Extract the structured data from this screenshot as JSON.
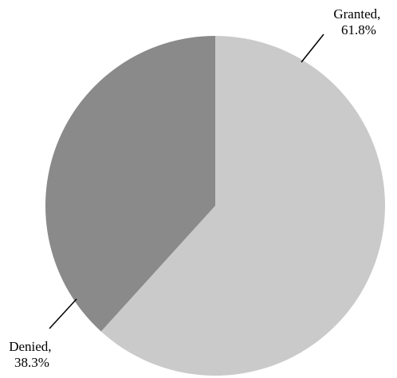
{
  "chart_data": {
    "type": "pie",
    "slices": [
      {
        "label": "Granted",
        "value": 61.8,
        "value_label": "61.8%",
        "color": "#cacaca"
      },
      {
        "label": "Denied",
        "value": 38.3,
        "value_label": "38.3%",
        "color": "#8a8a8a"
      }
    ],
    "start_angle": "top",
    "direction": "clockwise",
    "legend": "none",
    "slice_label_format": "category and percent, with leader lines"
  }
}
